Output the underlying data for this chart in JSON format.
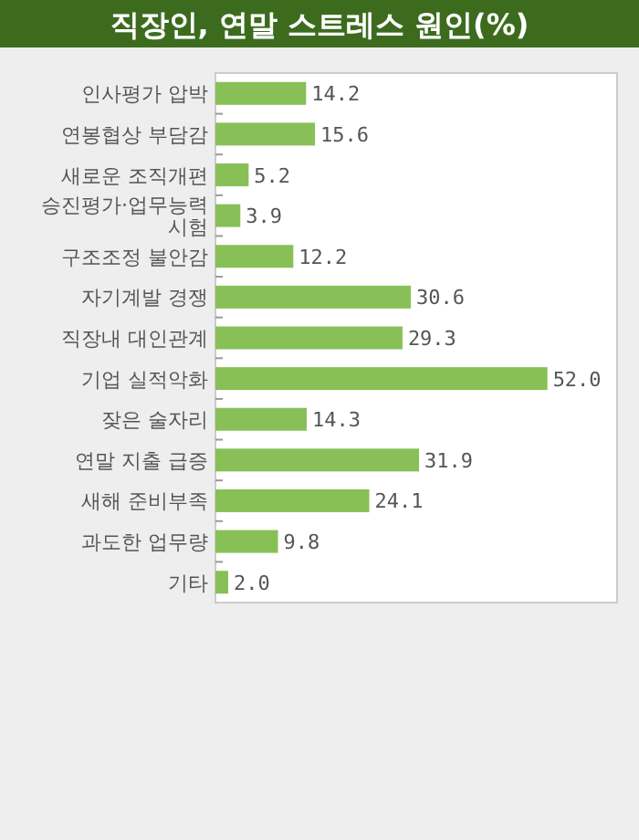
{
  "chart_data": {
    "type": "bar",
    "orientation": "horizontal",
    "title": "직장인, 연말 스트레스 원인(%)",
    "categories": [
      "인사평가 압박",
      "연봉협상 부담감",
      "새로운 조직개편",
      "승진평가·업무능력 시험",
      "구조조정 불안감",
      "자기계발 경쟁",
      "직장내 대인관계",
      "기업 실적악화",
      "잦은 술자리",
      "연말 지출 급증",
      "새해 준비부족",
      "과도한 업무량",
      "기타"
    ],
    "values": [
      14.2,
      15.6,
      5.2,
      3.9,
      12.2,
      30.6,
      29.3,
      52.0,
      14.3,
      31.9,
      24.1,
      9.8,
      2.0
    ],
    "value_labels": [
      "14.2",
      "15.6",
      "5.2",
      "3.9",
      "12.2",
      "30.6",
      "29.3",
      "52.0",
      "14.3",
      "31.9",
      "24.1",
      "9.8",
      "2.0"
    ],
    "color": "#88c057"
  }
}
